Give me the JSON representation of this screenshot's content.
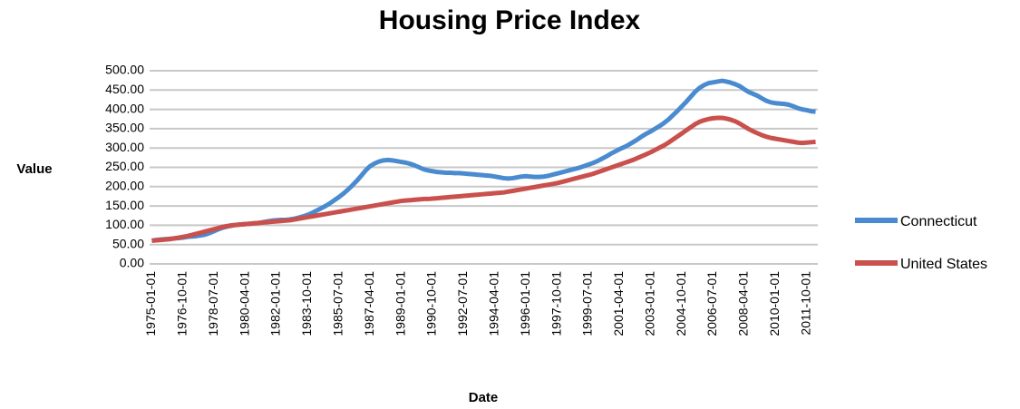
{
  "chart_data": {
    "type": "line",
    "title": "Housing Price Index",
    "x_label": "Date",
    "y_label": "Value",
    "categories": [
      "1975-01-01",
      null,
      null,
      null,
      null,
      null,
      null,
      "1976-10-01",
      null,
      null,
      null,
      null,
      null,
      null,
      "1978-07-01",
      null,
      null,
      null,
      null,
      null,
      null,
      "1980-04-01",
      null,
      null,
      null,
      null,
      null,
      null,
      "1982-01-01",
      null,
      null,
      null,
      null,
      null,
      null,
      "1983-10-01",
      null,
      null,
      null,
      null,
      null,
      null,
      "1985-07-01",
      null,
      null,
      null,
      null,
      null,
      null,
      "1987-04-01",
      null,
      null,
      null,
      null,
      null,
      null,
      "1989-01-01",
      null,
      null,
      null,
      null,
      null,
      null,
      "1990-10-01",
      null,
      null,
      null,
      null,
      null,
      null,
      "1992-07-01",
      null,
      null,
      null,
      null,
      null,
      null,
      "1994-04-01",
      null,
      null,
      null,
      null,
      null,
      null,
      "1996-01-01",
      null,
      null,
      null,
      null,
      null,
      null,
      "1997-10-01",
      null,
      null,
      null,
      null,
      null,
      null,
      "1999-07-01",
      null,
      null,
      null,
      null,
      null,
      null,
      "2001-04-01",
      null,
      null,
      null,
      null,
      null,
      null,
      "2003-01-01",
      null,
      null,
      null,
      null,
      null,
      null,
      "2004-10-01",
      null,
      null,
      null,
      null,
      null,
      null,
      "2006-07-01",
      null,
      null,
      null,
      null,
      null,
      null,
      "2008-04-01",
      null,
      null,
      null,
      null,
      null,
      null,
      "2010-01-01",
      null,
      null,
      null,
      null,
      null,
      null,
      "2011-10-01",
      null,
      null
    ],
    "series": [
      {
        "name": "Connecticut",
        "color": "#4a8bd0",
        "values": [
          60,
          62,
          63,
          64,
          65,
          66,
          67,
          68,
          70,
          71,
          72,
          74,
          76,
          80,
          85,
          90,
          94,
          97,
          99,
          101,
          102,
          103,
          104,
          105,
          106,
          108,
          110,
          112,
          113,
          114,
          114,
          115,
          117,
          120,
          123,
          127,
          132,
          138,
          144,
          150,
          157,
          165,
          173,
          182,
          192,
          203,
          215,
          228,
          242,
          253,
          260,
          265,
          268,
          269,
          268,
          266,
          264,
          262,
          259,
          255,
          250,
          245,
          242,
          240,
          238,
          237,
          236,
          236,
          235,
          235,
          234,
          233,
          232,
          231,
          230,
          229,
          228,
          226,
          224,
          222,
          221,
          222,
          224,
          226,
          227,
          226,
          225,
          225,
          226,
          228,
          231,
          234,
          237,
          240,
          243,
          246,
          249,
          253,
          257,
          261,
          266,
          272,
          278,
          285,
          291,
          297,
          302,
          308,
          315,
          322,
          330,
          337,
          343,
          350,
          357,
          365,
          374,
          385,
          396,
          408,
          420,
          433,
          446,
          456,
          463,
          468,
          470,
          472,
          474,
          472,
          469,
          465,
          460,
          452,
          445,
          440,
          435,
          428,
          422,
          418,
          416,
          415,
          414,
          412,
          408,
          403,
          400,
          398,
          395,
          394
        ]
      },
      {
        "name": "United States",
        "color": "#c9504c",
        "values": [
          60,
          61,
          62,
          63,
          64,
          66,
          68,
          70,
          72,
          75,
          78,
          81,
          84,
          87,
          90,
          93,
          96,
          98,
          100,
          101,
          102,
          103,
          104,
          105,
          106,
          107,
          108,
          109,
          110,
          111,
          112,
          113,
          115,
          117,
          119,
          121,
          123,
          125,
          127,
          129,
          131,
          133,
          135,
          137,
          139,
          141,
          143,
          145,
          147,
          149,
          151,
          153,
          155,
          157,
          159,
          161,
          163,
          164,
          165,
          166,
          167,
          168,
          168,
          169,
          170,
          171,
          172,
          173,
          174,
          175,
          176,
          177,
          178,
          179,
          180,
          181,
          182,
          183,
          184,
          185,
          187,
          189,
          191,
          193,
          195,
          197,
          199,
          201,
          203,
          205,
          207,
          209,
          212,
          215,
          218,
          221,
          224,
          227,
          230,
          233,
          237,
          241,
          245,
          249,
          253,
          257,
          261,
          265,
          269,
          274,
          279,
          284,
          289,
          295,
          301,
          307,
          314,
          322,
          330,
          338,
          346,
          354,
          362,
          368,
          372,
          375,
          377,
          378,
          378,
          376,
          373,
          369,
          363,
          356,
          349,
          343,
          338,
          333,
          329,
          326,
          324,
          322,
          320,
          318,
          316,
          314,
          313,
          314,
          315,
          316
        ]
      }
    ],
    "ylim": [
      0,
      500
    ],
    "yticks": [
      {
        "value": 0,
        "label": "0.00"
      },
      {
        "value": 50,
        "label": "50.00"
      },
      {
        "value": 100,
        "label": "100.00"
      },
      {
        "value": 150,
        "label": "150.00"
      },
      {
        "value": 200,
        "label": "200.00"
      },
      {
        "value": 250,
        "label": "250.00"
      },
      {
        "value": 300,
        "label": "300.00"
      },
      {
        "value": 350,
        "label": "350.00"
      },
      {
        "value": 400,
        "label": "400.00"
      },
      {
        "value": 450,
        "label": "450.00"
      },
      {
        "value": 500,
        "label": "500.00"
      }
    ],
    "grid": true,
    "legend": "right"
  }
}
